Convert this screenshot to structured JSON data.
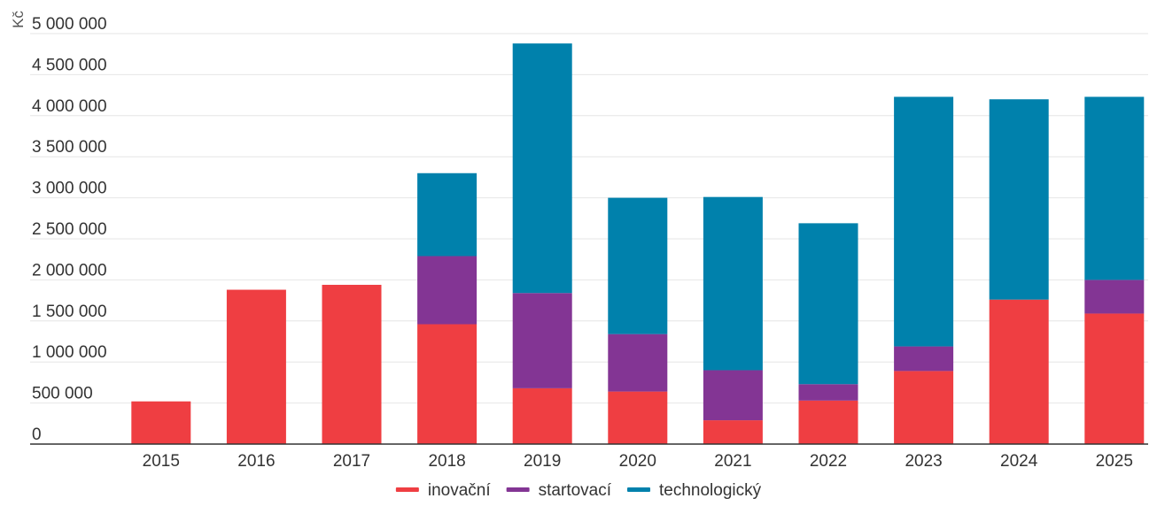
{
  "chart_data": {
    "type": "bar",
    "stacked": true,
    "title": "",
    "xlabel": "",
    "ylabel": "Kč",
    "categories": [
      "2015",
      "2016",
      "2017",
      "2018",
      "2019",
      "2020",
      "2021",
      "2022",
      "2023",
      "2024",
      "2025"
    ],
    "series": [
      {
        "name": "inovační",
        "color": "#ef3e42",
        "values": [
          520000,
          1880000,
          1940000,
          1460000,
          680000,
          640000,
          290000,
          530000,
          890000,
          1760000,
          1590000
        ]
      },
      {
        "name": "startovací",
        "color": "#833594",
        "values": [
          0,
          0,
          0,
          830000,
          1160000,
          700000,
          610000,
          200000,
          300000,
          0,
          410000
        ]
      },
      {
        "name": "technologický",
        "color": "#0081ac",
        "values": [
          0,
          0,
          0,
          1010000,
          3040000,
          1660000,
          2110000,
          1960000,
          3040000,
          2440000,
          2230000
        ]
      }
    ],
    "ylim": [
      0,
      5000000
    ],
    "yticks": [
      0,
      500000,
      1000000,
      1500000,
      2000000,
      2500000,
      3000000,
      3500000,
      4000000,
      4500000,
      5000000
    ],
    "ytick_labels": [
      "0",
      "500 000",
      "1 000 000",
      "1 500 000",
      "2 000 000",
      "2 500 000",
      "3 000 000",
      "3 500 000",
      "4 000 000",
      "4 500 000",
      "5 000 000"
    ],
    "grid": true,
    "legend_position": "bottom-center"
  }
}
